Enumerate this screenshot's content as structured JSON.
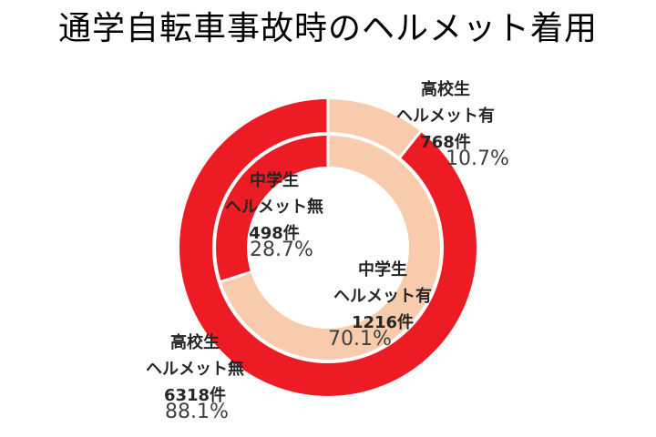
{
  "title": "通学自転車事故時のヘルメット着用",
  "chart_data": {
    "type": "donut",
    "title": "通学自転車事故時のヘルメット着用",
    "unit": "件",
    "legend": "none",
    "colors": {
      "with_helmet": "#F8CBAD",
      "without_helmet": "#ED1C24",
      "divider": "#FFFFFF",
      "label_text": "#262626",
      "pct_text": "#404040"
    },
    "rings": [
      {
        "group": "高校生",
        "position": "outer",
        "slices": [
          {
            "label": "ヘルメット有",
            "count": 768,
            "pct": 10.7,
            "color": "#F8CBAD"
          },
          {
            "label": "ヘルメット無",
            "count": 6318,
            "pct": 88.1,
            "color": "#ED1C24"
          }
        ]
      },
      {
        "group": "中学生",
        "position": "inner",
        "slices": [
          {
            "label": "ヘルメット有",
            "count": 1216,
            "pct": 70.1,
            "color": "#F8CBAD"
          },
          {
            "label": "ヘルメット無",
            "count": 498,
            "pct": 28.7,
            "color": "#ED1C24"
          }
        ]
      }
    ]
  },
  "callouts": {
    "hs_with": {
      "group": "高校生",
      "category": "ヘルメット有",
      "count_label": "768件",
      "pct_label": "10.7%"
    },
    "jhs_without": {
      "group": "中学生",
      "category": "ヘルメット無",
      "count_label": "498件",
      "pct_label": "28.7%"
    },
    "jhs_with": {
      "group": "中学生",
      "category": "ヘルメット有",
      "count_label": "1216件",
      "pct_label": "70.1%"
    },
    "hs_without": {
      "group": "高校生",
      "category": "ヘルメット無",
      "count_label": "6318件",
      "pct_label": "88.1%"
    }
  }
}
